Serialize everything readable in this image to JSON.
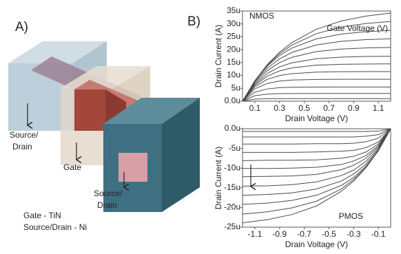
{
  "panel_a": {
    "label": "A)",
    "callouts": [
      [
        "Source/",
        "Drain"
      ],
      [
        "Gate"
      ],
      [
        "Source/",
        "Drain"
      ]
    ],
    "materials": [
      "Gate - TiN",
      "Source/Drain - Ni"
    ]
  },
  "panel_b": {
    "label": "B)"
  },
  "chart_data": [
    {
      "type": "line",
      "title": "NMOS",
      "annotation": "Gate Voltage (V)",
      "x_label": "Drain Voltage (V)",
      "y_label": "Drain Current (A)",
      "x": [
        0,
        0.1,
        0.2,
        0.3,
        0.4,
        0.6,
        0.8,
        1.0,
        1.2
      ],
      "xlim": [
        0,
        1.2
      ],
      "xticks": [
        0.1,
        0.3,
        0.5,
        0.7,
        0.9,
        1.1
      ],
      "ylim": [
        0,
        35
      ],
      "yticks": [
        {
          "value": 0,
          "label": "0.0u"
        },
        {
          "value": 5,
          "label": "5u"
        },
        {
          "value": 10,
          "label": "10u"
        },
        {
          "value": 15,
          "label": "15u"
        },
        {
          "value": 20,
          "label": "20u"
        },
        {
          "value": 25,
          "label": "25u"
        },
        {
          "value": 30,
          "label": "30u"
        },
        {
          "value": 35,
          "label": "35u"
        }
      ],
      "color": "#4a4a4a",
      "series": [
        {
          "values": [
            0,
            7.96,
            14.17,
            19.0,
            22.76,
            27.97,
            31.13,
            33.04,
            34.21
          ]
        },
        {
          "values": [
            0,
            7.95,
            13.93,
            18.42,
            21.8,
            26.24,
            28.75,
            30.16,
            30.96
          ]
        },
        {
          "values": [
            0,
            7.94,
            13.62,
            17.7,
            20.62,
            24.21,
            26.05,
            27.0,
            27.49
          ]
        },
        {
          "values": [
            0,
            7.58,
            12.82,
            16.43,
            18.93,
            21.84,
            23.23,
            23.9,
            24.21
          ]
        },
        {
          "values": [
            0,
            7.16,
            11.87,
            14.98,
            17.03,
            19.28,
            20.25,
            20.67,
            20.86
          ]
        },
        {
          "values": [
            0,
            6.63,
            10.75,
            13.31,
            14.89,
            16.5,
            17.11,
            17.35,
            17.44
          ]
        },
        {
          "values": [
            0,
            6.18,
            9.73,
            11.76,
            12.93,
            13.98,
            14.33,
            14.44,
            14.48
          ]
        },
        {
          "values": [
            0,
            5.6,
            8.47,
            9.94,
            10.7,
            11.29,
            11.44,
            11.49,
            11.5
          ]
        },
        {
          "values": [
            0,
            4.81,
            6.89,
            7.8,
            8.2,
            8.44,
            8.5,
            8.5,
            8.5
          ]
        },
        {
          "values": [
            0,
            3.48,
            4.76,
            5.23,
            5.4,
            5.49,
            5.5,
            5.5,
            5.5
          ]
        },
        {
          "values": [
            0,
            2.14,
            2.75,
            2.93,
            2.98,
            3,
            3,
            3,
            3
          ]
        },
        {
          "values": [
            0,
            0.81,
            0.96,
            0.99,
            1,
            1,
            1,
            1,
            1
          ]
        }
      ]
    },
    {
      "type": "line",
      "title": "PMOS",
      "x_label": "Drain Voltage (V)",
      "y_label": "Drain Current (A)",
      "x": [
        -1.2,
        -1.0,
        -0.8,
        -0.6,
        -0.4,
        -0.3,
        -0.2,
        -0.1,
        0
      ],
      "xlim": [
        -1.2,
        0
      ],
      "xticks": [
        -1.1,
        -0.9,
        -0.7,
        -0.5,
        -0.3,
        -0.1
      ],
      "ylim": [
        -25,
        0
      ],
      "yticks": [
        {
          "value": 0,
          "label": "0.0u"
        },
        {
          "value": -5,
          "label": "-5u"
        },
        {
          "value": -10,
          "label": "-10u"
        },
        {
          "value": -15,
          "label": "-15u"
        },
        {
          "value": -20,
          "label": "-20u"
        },
        {
          "value": -25,
          "label": "-25u"
        }
      ],
      "color": "#4a4a4a",
      "series": [
        {
          "values": [
            -23.9,
            -23.1,
            -21.8,
            -19.6,
            -15.9,
            -13.3,
            -9.9,
            -5.6,
            0
          ]
        },
        {
          "values": [
            -21.7,
            -21.1,
            -20.1,
            -18.4,
            -15.3,
            -12.9,
            -9.8,
            -5.6,
            0
          ]
        },
        {
          "values": [
            -19.2,
            -18.9,
            -18.2,
            -16.9,
            -14.4,
            -12.4,
            -9.5,
            -5.6,
            0
          ]
        },
        {
          "values": [
            -16.9,
            -16.7,
            -16.3,
            -15.3,
            -13.3,
            -11.5,
            -9.0,
            -5.3,
            0
          ]
        },
        {
          "values": [
            -14.6,
            -14.5,
            -14.2,
            -13.5,
            -11.9,
            -10.5,
            -8.3,
            -5.0,
            0
          ]
        },
        {
          "values": [
            -12.2,
            -12.1,
            -12.0,
            -11.6,
            -10.4,
            -9.3,
            -7.5,
            -4.6,
            0
          ]
        },
        {
          "values": [
            -10.1,
            -10.1,
            -10.0,
            -9.8,
            -9.1,
            -8.2,
            -6.8,
            -4.3,
            0
          ]
        },
        {
          "values": [
            -8.1,
            -8.0,
            -8.0,
            -7.9,
            -7.5,
            -7.0,
            -5.9,
            -3.9,
            0
          ]
        },
        {
          "values": [
            -6.0,
            -6.0,
            -6.0,
            -5.9,
            -5.7,
            -5.5,
            -4.8,
            -3.4,
            0
          ]
        },
        {
          "values": [
            -3.9,
            -3.9,
            -3.9,
            -3.8,
            -3.8,
            -3.7,
            -3.3,
            -2.4,
            0
          ]
        },
        {
          "values": [
            -2.1,
            -2.1,
            -2.1,
            -2.1,
            -2.1,
            -2.1,
            -1.9,
            -1.5,
            0
          ]
        },
        {
          "values": [
            -0.7,
            -0.7,
            -0.7,
            -0.7,
            -0.7,
            -0.7,
            -0.7,
            -0.6,
            0
          ]
        }
      ]
    }
  ]
}
